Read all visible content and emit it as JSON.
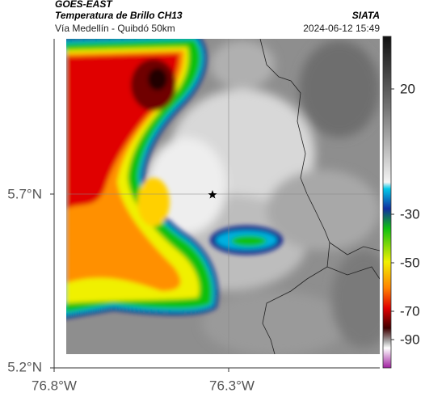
{
  "header": {
    "source": "GOES-EAST",
    "title": "Temperatura de Brillo CH13",
    "brand": "SIATA",
    "subtitle": "Vía Medellín - Quibdó 50km",
    "timestamp": "2024-06-12 15:49"
  },
  "map": {
    "lat_ticks": [
      "5.7°N",
      "5.2°N"
    ],
    "lon_ticks": [
      "76.8°W",
      "76.3°W"
    ]
  },
  "colorbar": {
    "ticks": [
      "20",
      "-30",
      "-50",
      "-70",
      "-90"
    ]
  }
}
